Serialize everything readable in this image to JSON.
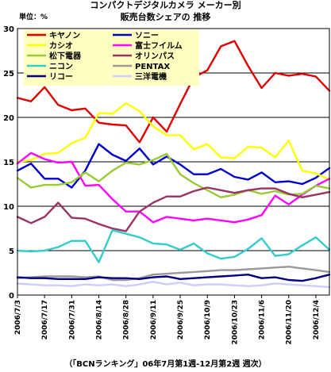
{
  "titles": {
    "line1": "コンパクトデジタルカメラ メーカー別",
    "line2": "販売台数シェアの 推移",
    "unit": "単位：%",
    "source": "（「BCNランキング」06年7月第1週-12月第2週 週次）"
  },
  "chart_data": {
    "type": "line",
    "ylim": [
      0,
      30
    ],
    "yticks": [
      0,
      5,
      10,
      15,
      20,
      25,
      30
    ],
    "grid": "horizontal",
    "legend_position": "top-left",
    "x_tick_labels": [
      "2006/7/3",
      "2006/7/17",
      "2006/7/31",
      "2006/8/14",
      "2006/8/28",
      "2006/9/11",
      "2006/9/25",
      "2006/10/9",
      "2006/10/23",
      "2006/11/6",
      "2006/11/20",
      "2006/12/4"
    ],
    "x": [
      "2006/7/3",
      "2006/7/10",
      "2006/7/17",
      "2006/7/24",
      "2006/7/31",
      "2006/8/7",
      "2006/8/14",
      "2006/8/21",
      "2006/8/28",
      "2006/9/4",
      "2006/9/11",
      "2006/9/18",
      "2006/9/25",
      "2006/10/2",
      "2006/10/9",
      "2006/10/16",
      "2006/10/23",
      "2006/10/30",
      "2006/11/6",
      "2006/11/13",
      "2006/11/20",
      "2006/11/27",
      "2006/12/4",
      "2006/12/11"
    ],
    "series": [
      {
        "name": "キヤノン",
        "color": "#e00000",
        "values": [
          22.2,
          21.8,
          23.4,
          21.4,
          20.8,
          21.0,
          19.4,
          19.2,
          19.1,
          17.2,
          20.0,
          18.4,
          21.5,
          24.5,
          25.3,
          28.0,
          28.6,
          25.8,
          23.3,
          25.0,
          24.7,
          24.9,
          24.6,
          23.0
        ]
      },
      {
        "name": "ソニー",
        "color": "#0000cc",
        "values": [
          14.0,
          14.8,
          13.1,
          13.1,
          12.1,
          14.0,
          17.0,
          15.8,
          15.1,
          16.5,
          14.7,
          15.6,
          14.7,
          13.6,
          13.6,
          14.2,
          13.3,
          13.0,
          13.8,
          12.7,
          12.8,
          12.5,
          13.2,
          14.3
        ]
      },
      {
        "name": "カシオ",
        "color": "#ffff00",
        "values": [
          15.0,
          15.2,
          15.9,
          16.0,
          17.1,
          17.7,
          20.5,
          20.4,
          21.6,
          20.7,
          19.0,
          18.0,
          18.0,
          16.4,
          17.0,
          15.5,
          15.4,
          16.7,
          16.6,
          15.5,
          17.4,
          14.0,
          13.7,
          13.0
        ]
      },
      {
        "name": "富士フイルム",
        "color": "#ff00ff",
        "values": [
          14.8,
          16.0,
          15.3,
          14.9,
          15.0,
          12.3,
          12.4,
          10.8,
          9.4,
          9.4,
          8.2,
          8.8,
          8.6,
          8.4,
          8.6,
          8.4,
          8.2,
          8.5,
          9.0,
          11.2,
          10.2,
          11.3,
          12.3,
          13.1
        ]
      },
      {
        "name": "松下電器",
        "color": "#99cc33",
        "values": [
          13.2,
          12.1,
          12.4,
          12.4,
          12.7,
          13.8,
          12.8,
          14.0,
          14.9,
          14.7,
          15.2,
          15.9,
          13.6,
          12.6,
          11.8,
          11.0,
          11.3,
          11.8,
          11.4,
          11.7,
          11.3,
          11.4,
          12.3,
          12.0
        ]
      },
      {
        "name": "オリンパス",
        "color": "#993366",
        "values": [
          8.8,
          8.1,
          8.8,
          10.4,
          8.7,
          8.6,
          8.0,
          7.5,
          7.2,
          9.4,
          10.4,
          11.1,
          11.1,
          11.7,
          12.1,
          11.8,
          11.5,
          11.8,
          12.0,
          12.0,
          11.4,
          11.0,
          11.3,
          11.6
        ]
      },
      {
        "name": "ニコン",
        "color": "#33cccc",
        "values": [
          5.0,
          4.9,
          5.0,
          5.4,
          6.1,
          6.1,
          3.7,
          7.3,
          6.9,
          6.5,
          5.8,
          5.7,
          5.1,
          5.8,
          4.7,
          4.1,
          4.3,
          5.2,
          6.4,
          4.4,
          4.6,
          5.6,
          6.5,
          5.1
        ]
      },
      {
        "name": "PENTAX",
        "color": "#999999",
        "values": [
          1.9,
          2.0,
          2.1,
          2.1,
          2.1,
          2.0,
          2.1,
          1.7,
          1.7,
          1.9,
          2.3,
          2.4,
          2.5,
          2.6,
          2.7,
          2.8,
          2.8,
          2.9,
          3.0,
          3.1,
          3.2,
          3.0,
          2.8,
          2.6
        ]
      },
      {
        "name": "リコー",
        "color": "#000080",
        "values": [
          2.0,
          1.9,
          1.9,
          1.8,
          1.8,
          1.8,
          2.0,
          1.9,
          1.9,
          1.8,
          2.0,
          2.1,
          1.8,
          1.9,
          2.0,
          2.1,
          2.2,
          2.3,
          1.9,
          2.0,
          1.7,
          1.6,
          1.9,
          2.3
        ]
      },
      {
        "name": "三洋電機",
        "color": "#ccccff",
        "values": [
          1.3,
          1.2,
          1.1,
          1.1,
          1.0,
          1.2,
          1.1,
          1.2,
          1.0,
          1.2,
          1.5,
          1.2,
          1.4,
          1.1,
          1.2,
          1.2,
          1.1,
          1.0,
          1.1,
          1.3,
          1.2,
          1.1,
          1.0,
          0.9
        ]
      }
    ]
  }
}
